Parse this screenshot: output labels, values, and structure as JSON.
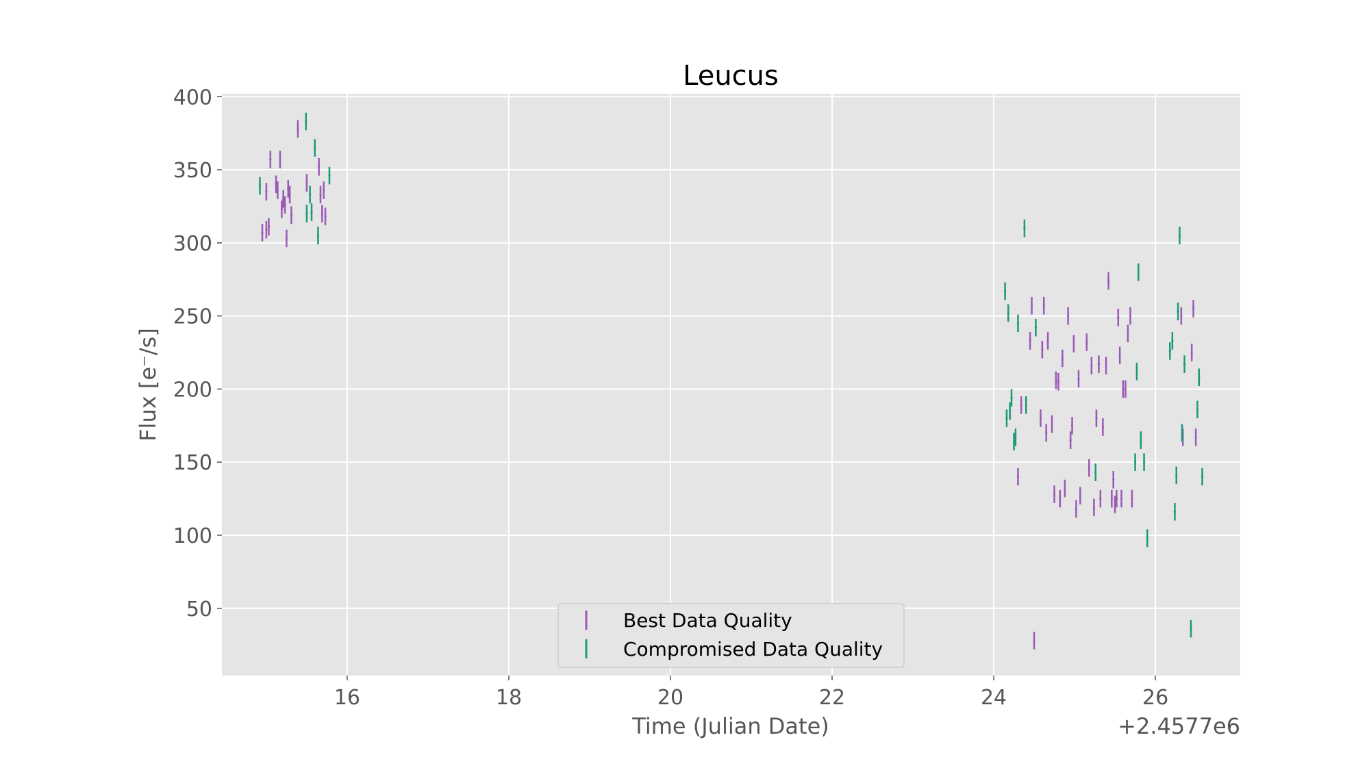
{
  "chart_data": {
    "type": "scatter",
    "title": "Leucus",
    "xlabel": "Time (Julian Date)",
    "ylabel": "Flux [e⁻/s]",
    "x_offset_label": "+2.4577e6",
    "xlim": [
      14.45,
      27.05
    ],
    "ylim": [
      4,
      402
    ],
    "xticks": [
      16,
      18,
      20,
      22,
      24,
      26
    ],
    "yticks": [
      50,
      100,
      150,
      200,
      250,
      300,
      350,
      400
    ],
    "grid": true,
    "legend_position": "lower center",
    "colors": {
      "background": "#e5e5e5",
      "grid": "#ffffff"
    },
    "series": [
      {
        "name": "Best Data Quality",
        "color": "#9b59b6",
        "points": [
          [
            14.95,
            307,
            6
          ],
          [
            15.0,
            309,
            6
          ],
          [
            15.03,
            311,
            6
          ],
          [
            15.0,
            335,
            6
          ],
          [
            15.05,
            357,
            6
          ],
          [
            15.12,
            340,
            6
          ],
          [
            15.14,
            336,
            6
          ],
          [
            15.17,
            357,
            6
          ],
          [
            15.19,
            323,
            6
          ],
          [
            15.21,
            330,
            6
          ],
          [
            15.23,
            326,
            6
          ],
          [
            15.25,
            303,
            6
          ],
          [
            15.27,
            337,
            6
          ],
          [
            15.29,
            333,
            6
          ],
          [
            15.31,
            319,
            6
          ],
          [
            15.39,
            378,
            6
          ],
          [
            15.5,
            341,
            6
          ],
          [
            15.65,
            352,
            6
          ],
          [
            15.67,
            333,
            6
          ],
          [
            15.69,
            320,
            6
          ],
          [
            15.71,
            336,
            6
          ],
          [
            15.73,
            318,
            6
          ],
          [
            24.3,
            140,
            6
          ],
          [
            24.34,
            189,
            6
          ],
          [
            24.45,
            233,
            6
          ],
          [
            24.47,
            257,
            6
          ],
          [
            24.5,
            28,
            6
          ],
          [
            24.58,
            180,
            6
          ],
          [
            24.6,
            227,
            6
          ],
          [
            24.62,
            257,
            6
          ],
          [
            24.65,
            170,
            6
          ],
          [
            24.67,
            233,
            6
          ],
          [
            24.72,
            176,
            6
          ],
          [
            24.75,
            128,
            6
          ],
          [
            24.77,
            206,
            6
          ],
          [
            24.8,
            205,
            6
          ],
          [
            24.82,
            125,
            6
          ],
          [
            24.85,
            221,
            6
          ],
          [
            24.88,
            132,
            6
          ],
          [
            24.92,
            250,
            6
          ],
          [
            24.95,
            165,
            6
          ],
          [
            24.97,
            175,
            6
          ],
          [
            24.99,
            231,
            6
          ],
          [
            25.02,
            118,
            6
          ],
          [
            25.05,
            207,
            6
          ],
          [
            25.07,
            127,
            6
          ],
          [
            25.15,
            232,
            6
          ],
          [
            25.18,
            146,
            6
          ],
          [
            25.21,
            216,
            6
          ],
          [
            25.24,
            119,
            6
          ],
          [
            25.27,
            180,
            6
          ],
          [
            25.3,
            217,
            6
          ],
          [
            25.32,
            125,
            6
          ],
          [
            25.35,
            174,
            6
          ],
          [
            25.39,
            216,
            6
          ],
          [
            25.42,
            274,
            6
          ],
          [
            25.46,
            125,
            6
          ],
          [
            25.48,
            138,
            6
          ],
          [
            25.5,
            121,
            6
          ],
          [
            25.52,
            125,
            6
          ],
          [
            25.54,
            249,
            6
          ],
          [
            25.56,
            223,
            6
          ],
          [
            25.58,
            125,
            6
          ],
          [
            25.6,
            200,
            6
          ],
          [
            25.63,
            200,
            6
          ],
          [
            25.66,
            238,
            6
          ],
          [
            25.69,
            250,
            6
          ],
          [
            25.71,
            125,
            6
          ],
          [
            26.32,
            250,
            6
          ],
          [
            26.34,
            167,
            6
          ],
          [
            26.45,
            225,
            6
          ],
          [
            26.47,
            255,
            6
          ],
          [
            26.5,
            167,
            6
          ]
        ]
      },
      {
        "name": "Compromised Data Quality",
        "color": "#1a9a7a",
        "points": [
          [
            14.92,
            339,
            6
          ],
          [
            15.49,
            383,
            6
          ],
          [
            15.5,
            320,
            6
          ],
          [
            15.54,
            333,
            6
          ],
          [
            15.56,
            321,
            6
          ],
          [
            15.6,
            365,
            6
          ],
          [
            15.64,
            305,
            6
          ],
          [
            15.78,
            346,
            6
          ],
          [
            24.14,
            267,
            6
          ],
          [
            24.16,
            180,
            6
          ],
          [
            24.18,
            252,
            6
          ],
          [
            24.2,
            185,
            6
          ],
          [
            24.22,
            194,
            6
          ],
          [
            24.25,
            164,
            6
          ],
          [
            24.27,
            167,
            6
          ],
          [
            24.3,
            245,
            6
          ],
          [
            24.38,
            310,
            6
          ],
          [
            24.4,
            189,
            6
          ],
          [
            24.52,
            242,
            6
          ],
          [
            25.26,
            143,
            6
          ],
          [
            25.75,
            150,
            6
          ],
          [
            25.77,
            212,
            6
          ],
          [
            25.79,
            280,
            6
          ],
          [
            25.82,
            165,
            6
          ],
          [
            25.86,
            150,
            6
          ],
          [
            25.9,
            98,
            6
          ],
          [
            26.18,
            226,
            6
          ],
          [
            26.21,
            233,
            6
          ],
          [
            26.24,
            116,
            6
          ],
          [
            26.26,
            141,
            6
          ],
          [
            26.28,
            253,
            6
          ],
          [
            26.3,
            305,
            6
          ],
          [
            26.33,
            170,
            6
          ],
          [
            26.36,
            217,
            6
          ],
          [
            26.44,
            36,
            6
          ],
          [
            26.52,
            186,
            6
          ],
          [
            26.54,
            208,
            6
          ],
          [
            26.58,
            140,
            6
          ]
        ]
      }
    ]
  }
}
